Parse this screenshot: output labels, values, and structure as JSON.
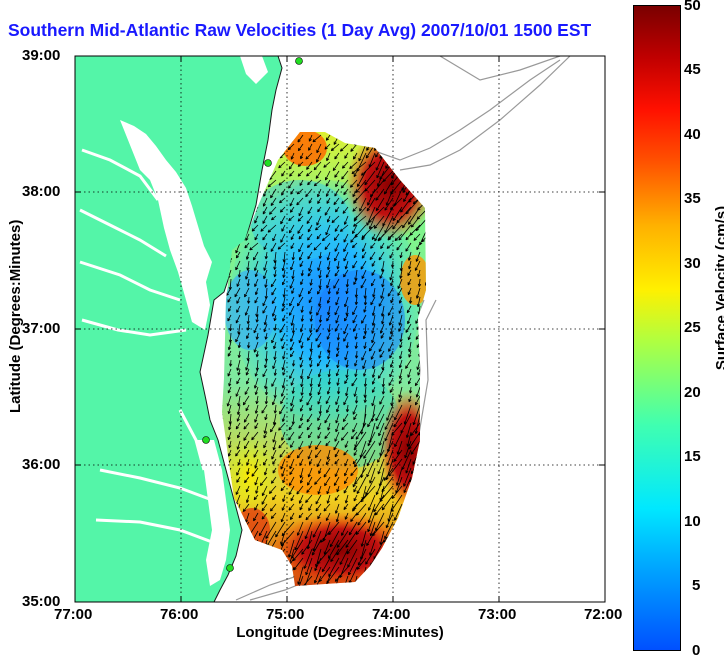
{
  "title": "Southern Mid-Atlantic Raw Velocities (1 Day Avg) 2007/10/01 1500 EST",
  "x_axis": {
    "label": "Longitude (Degrees:Minutes)",
    "ticks": [
      "77:00",
      "76:00",
      "75:00",
      "74:00",
      "73:00",
      "72:00"
    ]
  },
  "y_axis": {
    "label": "Latitude (Degrees:Minutes)",
    "ticks": [
      "39:00",
      "38:00",
      "37:00",
      "36:00",
      "35:00"
    ]
  },
  "colorbar": {
    "label": "Surface Velocity (cm/s)",
    "ticks": [
      "50",
      "45",
      "40",
      "35",
      "30",
      "25",
      "20",
      "15",
      "10",
      "5",
      "0"
    ],
    "min": 0,
    "max": 50
  },
  "colors": {
    "land": "#54f5a8",
    "title": "#1919ff",
    "station": "#22dd22"
  }
}
